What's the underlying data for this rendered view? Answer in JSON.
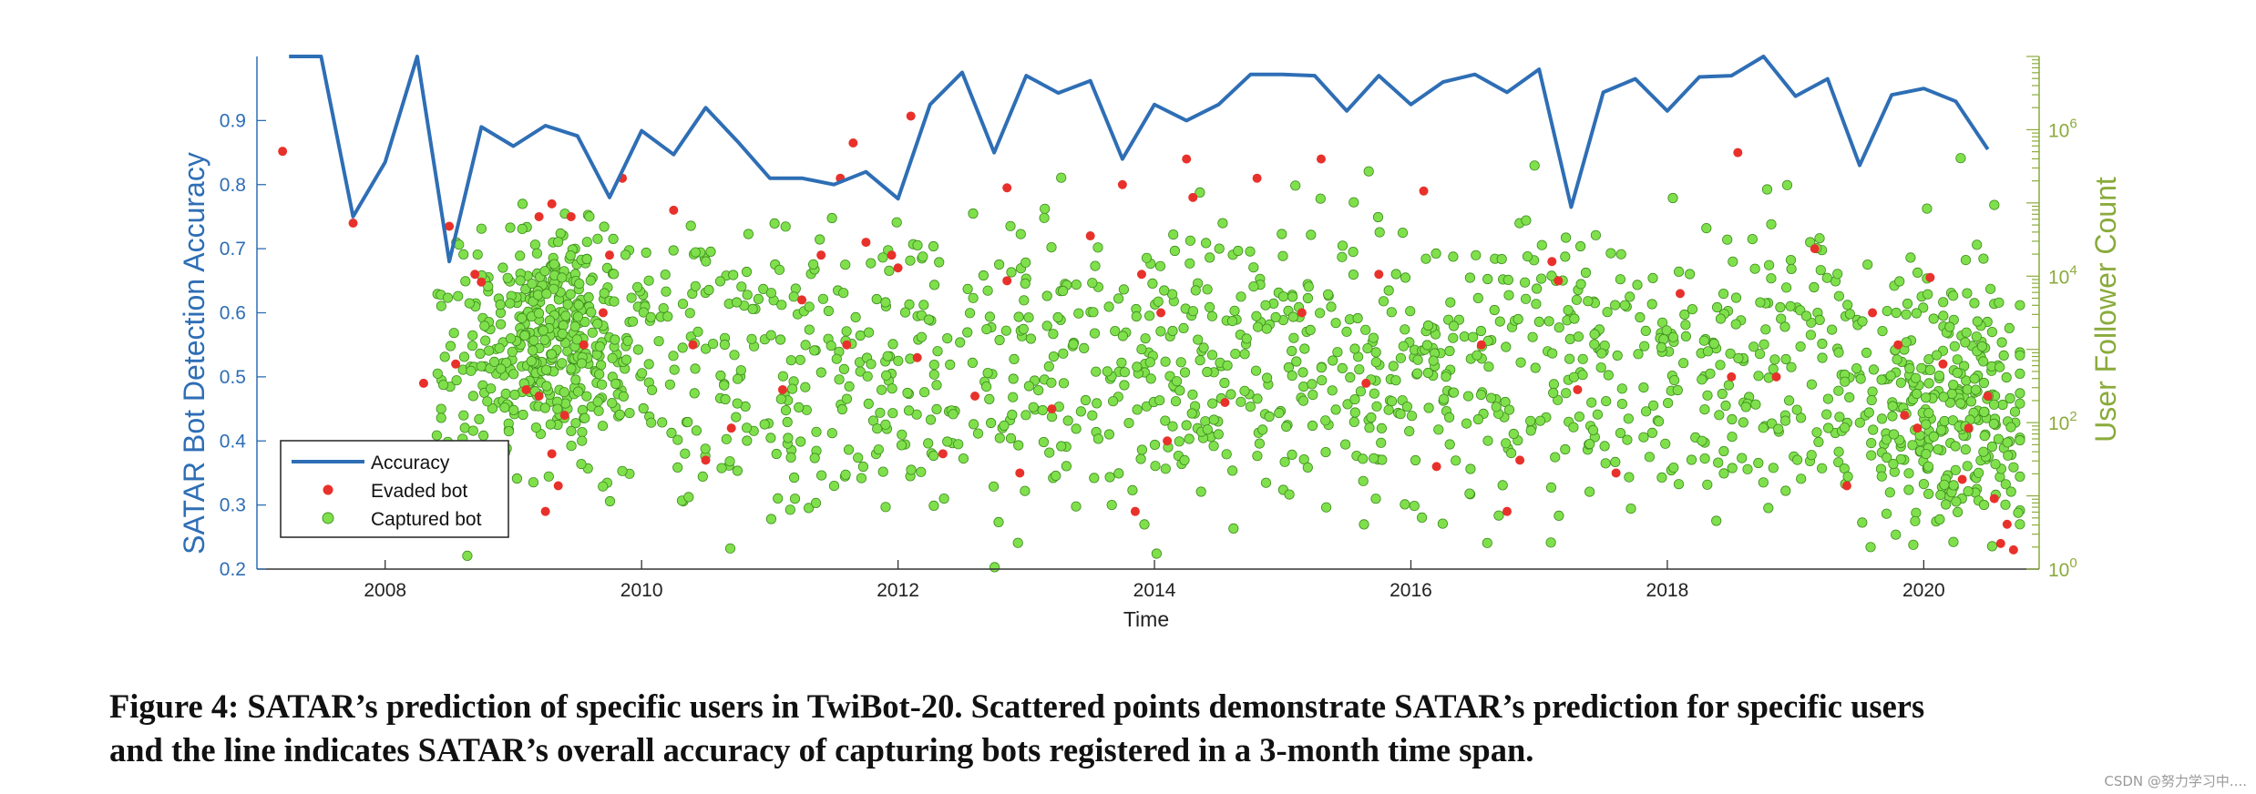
{
  "figure": {
    "caption_line1": "Figure 4: SATAR’s prediction of specific users in TwiBot-20. Scattered points demonstrate SATAR’s prediction for specific users",
    "caption_line2": "and the line indicates SATAR’s overall accuracy of capturing bots registered in a 3-month time span.",
    "watermark": "CSDN @努力学习中...."
  },
  "colors": {
    "accuracy": "#2e6eb5",
    "evaded": "#e8312b",
    "captured": "#7fe04c",
    "captured_edge": "#3f8d1e",
    "right_axis": "#8aab3c",
    "left_axis": "#2e6eb5"
  },
  "chart_data": {
    "type": "line+scatter",
    "xlabel": "Time",
    "ylabel_left": "SATAR Bot Detection Accuracy",
    "ylabel_right": "User Follower Count",
    "xlim": [
      2007.0,
      2020.9
    ],
    "ylim_left": [
      0.2,
      1.0
    ],
    "ylim_right_log10": [
      0,
      7
    ],
    "x_ticks": [
      2008,
      2010,
      2012,
      2014,
      2016,
      2018,
      2020
    ],
    "y_left_ticks": [
      0.2,
      0.3,
      0.4,
      0.5,
      0.6,
      0.7,
      0.8,
      0.9
    ],
    "y_right_tick_labels": [
      {
        "base": "10",
        "exp": "0"
      },
      {
        "base": "10",
        "exp": "2"
      },
      {
        "base": "10",
        "exp": "4"
      },
      {
        "base": "10",
        "exp": "6"
      }
    ],
    "legend": [
      "Accuracy",
      "Evaded bot",
      "Captured bot"
    ],
    "series": [
      {
        "name": "Accuracy",
        "kind": "line",
        "x": [
          2007.25,
          2007.5,
          2007.75,
          2008.0,
          2008.25,
          2008.5,
          2008.75,
          2009.0,
          2009.25,
          2009.5,
          2009.75,
          2010.0,
          2010.25,
          2010.5,
          2010.75,
          2011.0,
          2011.25,
          2011.5,
          2011.75,
          2012.0,
          2012.25,
          2012.5,
          2012.75,
          2013.0,
          2013.25,
          2013.5,
          2013.75,
          2014.0,
          2014.25,
          2014.5,
          2014.75,
          2015.0,
          2015.25,
          2015.5,
          2015.75,
          2016.0,
          2016.25,
          2016.5,
          2016.75,
          2017.0,
          2017.25,
          2017.5,
          2017.75,
          2018.0,
          2018.25,
          2018.5,
          2018.75,
          2019.0,
          2019.25,
          2019.5,
          2019.75,
          2020.0,
          2020.25,
          2020.5
        ],
        "values": [
          1.0,
          1.0,
          0.75,
          0.835,
          1.0,
          0.68,
          0.89,
          0.86,
          0.892,
          0.876,
          0.78,
          0.884,
          0.847,
          0.92,
          0.867,
          0.81,
          0.81,
          0.8,
          0.82,
          0.778,
          0.925,
          0.975,
          0.85,
          0.97,
          0.943,
          0.962,
          0.84,
          0.925,
          0.9,
          0.925,
          0.972,
          0.972,
          0.97,
          0.915,
          0.97,
          0.925,
          0.96,
          0.972,
          0.944,
          0.98,
          0.765,
          0.944,
          0.965,
          0.915,
          0.968,
          0.97,
          1.0,
          0.938,
          0.965,
          0.83,
          0.94,
          0.95,
          0.93,
          0.855
        ]
      },
      {
        "name": "Evaded bot",
        "kind": "scatter",
        "points": [
          [
            2007.2,
            0.852
          ],
          [
            2007.75,
            0.74
          ],
          [
            2008.5,
            0.735
          ],
          [
            2008.7,
            0.66
          ],
          [
            2008.75,
            0.648
          ],
          [
            2009.2,
            0.75
          ],
          [
            2009.3,
            0.77
          ],
          [
            2009.45,
            0.75
          ],
          [
            2009.75,
            0.69
          ],
          [
            2009.85,
            0.81
          ],
          [
            2009.1,
            0.48
          ],
          [
            2009.2,
            0.47
          ],
          [
            2009.4,
            0.44
          ],
          [
            2009.3,
            0.38
          ],
          [
            2009.35,
            0.33
          ],
          [
            2009.25,
            0.29
          ],
          [
            2008.55,
            0.52
          ],
          [
            2008.3,
            0.49
          ],
          [
            2009.55,
            0.55
          ],
          [
            2009.7,
            0.6
          ],
          [
            2010.25,
            0.76
          ],
          [
            2010.4,
            0.55
          ],
          [
            2010.7,
            0.42
          ],
          [
            2010.5,
            0.37
          ],
          [
            2011.1,
            0.48
          ],
          [
            2011.25,
            0.62
          ],
          [
            2011.4,
            0.69
          ],
          [
            2011.6,
            0.55
          ],
          [
            2011.75,
            0.71
          ],
          [
            2011.95,
            0.69
          ],
          [
            2012.1,
            0.907
          ],
          [
            2012.0,
            0.67
          ],
          [
            2012.15,
            0.53
          ],
          [
            2012.35,
            0.38
          ],
          [
            2012.6,
            0.47
          ],
          [
            2012.85,
            0.65
          ],
          [
            2012.85,
            0.795
          ],
          [
            2011.55,
            0.81
          ],
          [
            2011.65,
            0.865
          ],
          [
            2012.95,
            0.35
          ],
          [
            2013.2,
            0.45
          ],
          [
            2013.5,
            0.72
          ],
          [
            2013.75,
            0.8
          ],
          [
            2013.9,
            0.66
          ],
          [
            2013.85,
            0.29
          ],
          [
            2014.1,
            0.4
          ],
          [
            2014.05,
            0.6
          ],
          [
            2014.25,
            0.84
          ],
          [
            2014.3,
            0.78
          ],
          [
            2014.55,
            0.46
          ],
          [
            2014.8,
            0.81
          ],
          [
            2015.15,
            0.6
          ],
          [
            2015.3,
            0.84
          ],
          [
            2015.65,
            0.49
          ],
          [
            2015.75,
            0.66
          ],
          [
            2016.1,
            0.79
          ],
          [
            2016.2,
            0.36
          ],
          [
            2016.55,
            0.55
          ],
          [
            2016.75,
            0.29
          ],
          [
            2016.85,
            0.37
          ],
          [
            2017.1,
            0.68
          ],
          [
            2017.15,
            0.65
          ],
          [
            2017.3,
            0.48
          ],
          [
            2017.6,
            0.35
          ],
          [
            2018.1,
            0.63
          ],
          [
            2018.5,
            0.5
          ],
          [
            2018.55,
            0.85
          ],
          [
            2018.85,
            0.5
          ],
          [
            2019.15,
            0.7
          ],
          [
            2019.4,
            0.33
          ],
          [
            2019.6,
            0.6
          ],
          [
            2019.8,
            0.55
          ],
          [
            2019.85,
            0.44
          ],
          [
            2019.95,
            0.42
          ],
          [
            2020.05,
            0.655
          ],
          [
            2020.15,
            0.52
          ],
          [
            2020.3,
            0.34
          ],
          [
            2020.35,
            0.42
          ],
          [
            2020.5,
            0.47
          ],
          [
            2020.55,
            0.31
          ],
          [
            2020.65,
            0.27
          ],
          [
            2020.6,
            0.24
          ],
          [
            2020.7,
            0.23
          ]
        ]
      },
      {
        "name": "Captured bot",
        "kind": "scatter",
        "count": 1800
      }
    ]
  }
}
